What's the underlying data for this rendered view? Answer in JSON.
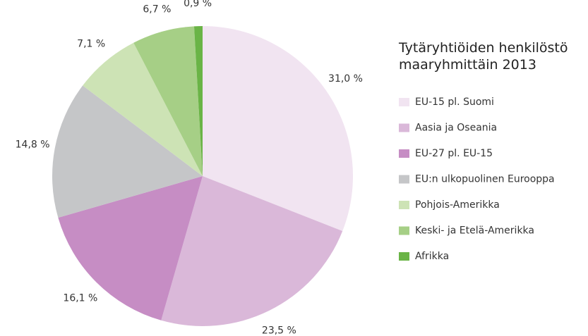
{
  "chart_data": {
    "type": "pie",
    "title": "Tytäryhtiöiden henkilöstö maaryhmittäin 2013",
    "categories": [
      "EU-15 pl. Suomi",
      "Aasia ja Oseania",
      "EU-27 pl. EU-15",
      "EU:n ulkopuolinen Eurooppa",
      "Pohjois-Amerikka",
      "Keski- ja Etelä-Amerikka",
      "Afrikka"
    ],
    "values": [
      31.0,
      23.5,
      16.1,
      14.8,
      7.1,
      6.7,
      0.9
    ],
    "value_labels": [
      "31,0 %",
      "23,5 %",
      "16,1 %",
      "14,8 %",
      "7,1 %",
      "6,7 %",
      "0,9 %"
    ],
    "colors": [
      "#f1e4f1",
      "#dab8d9",
      "#c68dc4",
      "#c5c6c8",
      "#cde3b5",
      "#a6cf86",
      "#6ab446"
    ]
  }
}
